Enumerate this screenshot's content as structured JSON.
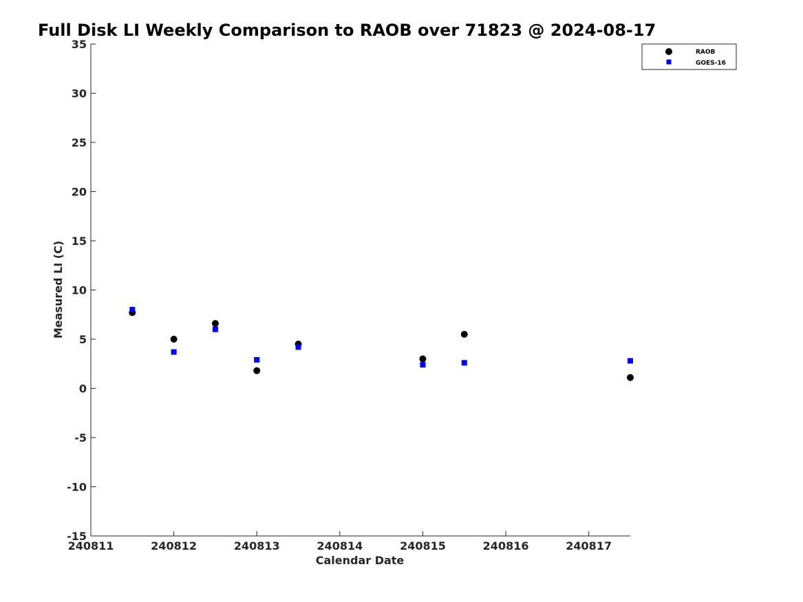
{
  "chart_data": {
    "type": "scatter",
    "title": "Full Disk LI Weekly Comparison to RAOB over 71823 @ 2024-08-17",
    "xlabel": "Calendar Date",
    "ylabel": "Measured LI (C)",
    "xlim": [
      240811,
      240817.5
    ],
    "ylim": [
      -15,
      35
    ],
    "xticks": [
      240811,
      240812,
      240813,
      240814,
      240815,
      240816,
      240817
    ],
    "xtick_labels": [
      "240811",
      "240812",
      "240813",
      "240814",
      "240815",
      "240816",
      "240817"
    ],
    "yticks": [
      -15,
      -10,
      -5,
      0,
      5,
      10,
      15,
      20,
      25,
      30,
      35
    ],
    "ytick_labels": [
      "-15",
      "-10",
      "-5",
      "0",
      "5",
      "10",
      "15",
      "20",
      "25",
      "30",
      "35"
    ],
    "grid": false,
    "legend_position": "top-right",
    "series": [
      {
        "name": "RAOB",
        "marker": "circle",
        "color": "#000000",
        "x": [
          240811.5,
          240812,
          240812.5,
          240813,
          240813.5,
          240815,
          240815.5,
          240817.5
        ],
        "y": [
          7.7,
          5.0,
          6.6,
          1.8,
          4.5,
          3.0,
          5.5,
          1.1
        ]
      },
      {
        "name": "GOES-16",
        "marker": "square",
        "color": "#0000ff",
        "x": [
          240811.5,
          240812,
          240812.5,
          240813,
          240813.5,
          240815,
          240815.5,
          240817.5
        ],
        "y": [
          8.0,
          3.7,
          6.0,
          2.9,
          4.2,
          2.4,
          2.6,
          2.8
        ]
      }
    ]
  }
}
